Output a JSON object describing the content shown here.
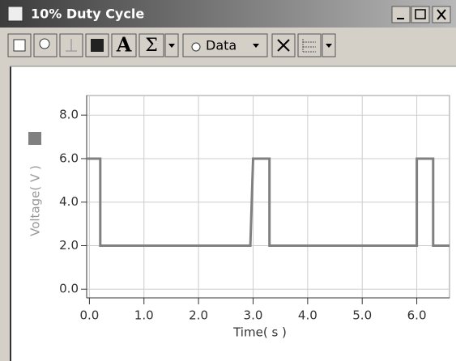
{
  "window": {
    "title": "10% Duty Cycle"
  },
  "toolbar": {
    "labels": [
      "A",
      "Σ",
      "Data"
    ]
  },
  "chart_data": {
    "type": "line",
    "x": [
      -0.05,
      0.2,
      0.2,
      2.95,
      3.0,
      3.3,
      3.3,
      6.0,
      6.0,
      6.3,
      6.3,
      6.6
    ],
    "values": [
      6,
      6,
      2,
      2,
      6,
      6,
      2,
      2,
      6,
      6,
      2,
      2
    ],
    "color": "#808080",
    "xlabel": "Time( s )",
    "ylabel": "Voltage( V )",
    "xlim": [
      -0.05,
      6.6
    ],
    "ylim": [
      -0.4,
      8.9
    ],
    "xticks": [
      {
        "value": 0,
        "label": "0.0"
      },
      {
        "value": 1,
        "label": "1.0"
      },
      {
        "value": 2,
        "label": "2.0"
      },
      {
        "value": 3,
        "label": "3.0"
      },
      {
        "value": 4,
        "label": "4.0"
      },
      {
        "value": 5,
        "label": "5.0"
      },
      {
        "value": 6,
        "label": "6.0"
      }
    ],
    "yticks": [
      {
        "value": 0,
        "label": "0.0"
      },
      {
        "value": 2,
        "label": "2.0"
      },
      {
        "value": 4,
        "label": "4.0"
      },
      {
        "value": 6,
        "label": "6.0"
      },
      {
        "value": 8,
        "label": "8.0"
      }
    ],
    "grid": true
  }
}
